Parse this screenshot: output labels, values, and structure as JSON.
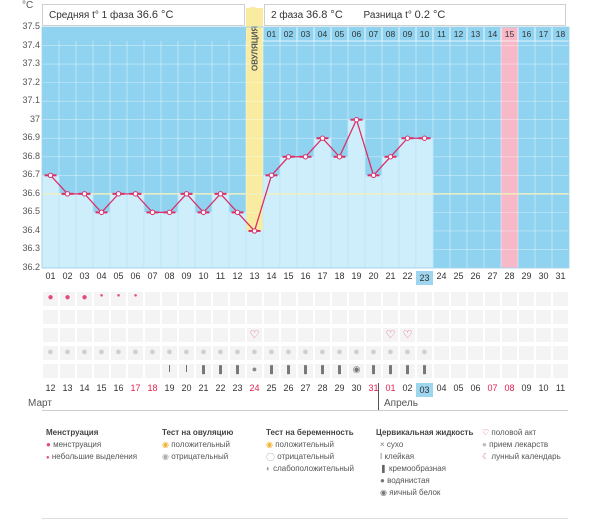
{
  "chart_data": {
    "type": "line",
    "title": "",
    "ylabel": "°C",
    "ylim": [
      36.2,
      37.5
    ],
    "yticks": [
      "37.5",
      "37.4",
      "37.3",
      "37.2",
      "37.1",
      "37",
      "36.9",
      "36.8",
      "36.7",
      "36.6",
      "36.5",
      "36.4",
      "36.3",
      "36.2"
    ],
    "cycle_days": [
      "01",
      "02",
      "03",
      "04",
      "05",
      "06",
      "07",
      "08",
      "09",
      "10",
      "11",
      "12",
      "13",
      "14",
      "15",
      "16",
      "17",
      "18",
      "19",
      "20",
      "21",
      "22",
      "23",
      "24",
      "25",
      "26",
      "27",
      "28",
      "29",
      "30",
      "31"
    ],
    "top_days": [
      "01",
      "02",
      "03",
      "04",
      "05",
      "06",
      "07",
      "08",
      "09",
      "10",
      "11",
      "12",
      "13",
      "14",
      "15",
      "16",
      "17",
      "18"
    ],
    "temperatures": [
      36.7,
      36.6,
      36.6,
      36.5,
      36.6,
      36.6,
      36.5,
      36.5,
      36.6,
      36.5,
      36.6,
      36.5,
      36.4,
      36.7,
      36.8,
      36.8,
      36.9,
      36.8,
      37.0,
      36.7,
      36.8,
      36.9,
      36.9
    ],
    "coverline": 36.6,
    "ovulation_day": 13,
    "today_day": 23,
    "expected_period_day": 28,
    "calendar_days": [
      "12",
      "13",
      "14",
      "15",
      "16",
      "17",
      "18",
      "19",
      "20",
      "21",
      "22",
      "23",
      "24",
      "25",
      "26",
      "27",
      "28",
      "29",
      "30",
      "31",
      "01",
      "02",
      "03",
      "04",
      "05",
      "06",
      "07",
      "08",
      "09",
      "10",
      "11"
    ],
    "calendar_red_days": [
      "17",
      "18",
      "24",
      "31",
      "01",
      "07",
      "08"
    ],
    "months": [
      "Март",
      "Апрель"
    ],
    "menstruation_big_days": [
      1,
      2,
      3
    ],
    "menstruation_small_days": [
      4,
      5,
      6
    ],
    "intercourse_days": [
      13,
      21,
      22
    ],
    "pill_days": [
      1,
      2,
      3,
      4,
      5,
      6,
      7,
      8,
      9,
      10,
      11,
      12,
      13,
      14,
      15,
      16,
      17,
      18,
      19,
      20,
      21,
      22,
      23
    ],
    "fluid_sticky_days": [
      8,
      9
    ],
    "fluid_creamy_days": [
      10,
      11,
      12,
      14,
      15,
      16,
      17,
      18,
      20,
      21,
      22,
      23
    ],
    "fluid_watery_days": [
      13
    ],
    "fluid_white_days": [
      19
    ]
  },
  "header": {
    "unit": "°C",
    "phase1_label": "Средняя t° 1 фаза",
    "phase1_value": "36.6 °C",
    "phase2_label": "2 фаза",
    "phase2_value": "36.8 °C",
    "diff_label": "Разница t°",
    "diff_value": "0.2 °C",
    "ovulation_label": "ОВУЛЯЦИЯ"
  },
  "legend": {
    "menstruation": {
      "title": "Менструация",
      "items": [
        "менструация",
        "небольшие выделения"
      ]
    },
    "ovulation_test": {
      "title": "Тест на овуляцию",
      "items": [
        "положительный",
        "отрицательный"
      ]
    },
    "pregnancy_test": {
      "title": "Тест на беременность",
      "items": [
        "положительный",
        "отрицательный",
        "слабоположительный"
      ]
    },
    "cervical": {
      "title": "Цервикальная жидкость",
      "items": [
        "сухо",
        "клейкая",
        "кремообразная",
        "водянистая",
        "яичный белок"
      ]
    },
    "other": {
      "items": [
        "половой акт",
        "прием лекарств",
        "лунный календарь"
      ]
    }
  },
  "colors": {
    "sky": "#8fd3f0",
    "bar_fill": "#cfeefc",
    "line": "#d9306a",
    "ovulation": "#f9eca0",
    "period_pink": "#f7b8c8",
    "today_box": "#9fd6ef"
  }
}
